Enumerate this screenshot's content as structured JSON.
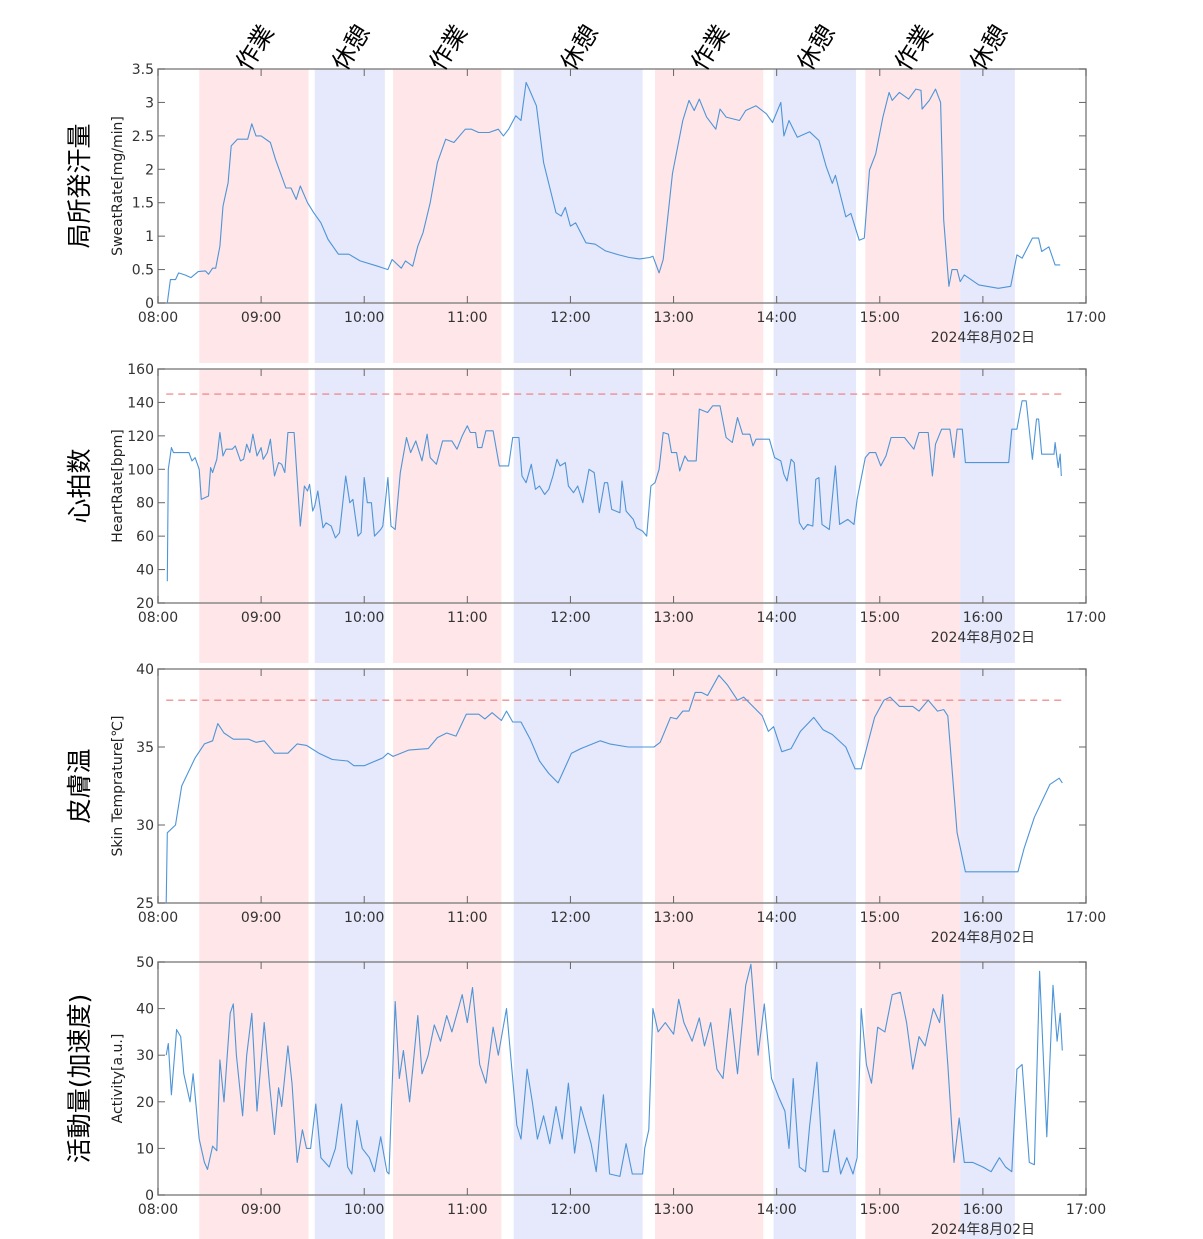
{
  "date_label": "2024年8月02日",
  "x_ticks": [
    "08:00",
    "09:00",
    "10:00",
    "11:00",
    "12:00",
    "13:00",
    "14:00",
    "15:00",
    "16:00",
    "17:00"
  ],
  "x_range_hours": [
    8,
    17
  ],
  "colors": {
    "line": "#4d95d8",
    "work": "#ffe6e8",
    "rest": "#e6e8fb",
    "threshold": "#ee7a7a",
    "axis": "#888888"
  },
  "phases": [
    {
      "label": "作業",
      "type": "work",
      "start": 8.4,
      "end": 9.46
    },
    {
      "label": "休憩",
      "type": "rest",
      "start": 9.52,
      "end": 10.2
    },
    {
      "label": "作業",
      "type": "work",
      "start": 10.28,
      "end": 11.33
    },
    {
      "label": "休憩",
      "type": "rest",
      "start": 11.45,
      "end": 12.7
    },
    {
      "label": "作業",
      "type": "work",
      "start": 12.82,
      "end": 13.87
    },
    {
      "label": "休憩",
      "type": "rest",
      "start": 13.97,
      "end": 14.77
    },
    {
      "label": "作業",
      "type": "work",
      "start": 14.86,
      "end": 15.78
    },
    {
      "label": "休憩",
      "type": "rest",
      "start": 15.78,
      "end": 16.31
    }
  ],
  "chart_data": [
    {
      "type": "line",
      "title": "局所発汗量",
      "ylabel": "SweatRate[mg/min]",
      "ylim": [
        0,
        3.5
      ],
      "yticks": [
        "0",
        "0.5",
        "1",
        "1.5",
        "2",
        "2.5",
        "3",
        "3.5"
      ],
      "ytick_values": [
        0,
        0.5,
        1,
        1.5,
        2,
        2.5,
        3,
        3.5
      ],
      "threshold": null,
      "x": [
        8.09,
        8.12,
        8.17,
        8.2,
        8.26,
        8.32,
        8.39,
        8.46,
        8.49,
        8.53,
        8.56,
        8.6,
        8.63,
        8.68,
        8.71,
        8.77,
        8.87,
        8.91,
        8.95,
        9.0,
        9.09,
        9.14,
        9.24,
        9.29,
        9.34,
        9.38,
        9.45,
        9.51,
        9.58,
        9.65,
        9.75,
        9.85,
        9.96,
        10.13,
        10.23,
        10.27,
        10.36,
        10.4,
        10.47,
        10.52,
        10.57,
        10.64,
        10.71,
        10.79,
        10.87,
        10.98,
        11.04,
        11.11,
        11.21,
        11.3,
        11.35,
        11.4,
        11.47,
        11.52,
        11.57,
        11.6,
        11.67,
        11.74,
        11.86,
        11.91,
        11.95,
        12.0,
        12.05,
        12.15,
        12.24,
        12.34,
        12.47,
        12.57,
        12.67,
        12.77,
        12.8,
        12.86,
        12.9,
        12.99,
        13.09,
        13.15,
        13.2,
        13.25,
        13.32,
        13.41,
        13.45,
        13.51,
        13.64,
        13.7,
        13.8,
        13.9,
        13.96,
        14.04,
        14.07,
        14.12,
        14.2,
        14.32,
        14.41,
        14.48,
        14.54,
        14.57,
        14.67,
        14.72,
        14.8,
        14.85,
        14.9,
        14.96,
        15.03,
        15.09,
        15.12,
        15.19,
        15.28,
        15.35,
        15.4,
        15.41,
        15.48,
        15.54,
        15.59,
        15.62,
        15.67,
        15.7,
        15.75,
        15.78,
        15.82,
        15.96,
        16.15,
        16.27,
        16.33,
        16.38,
        16.48,
        16.54,
        16.57,
        16.64,
        16.7,
        16.75
      ],
      "y": [
        0,
        0.35,
        0.35,
        0.45,
        0.42,
        0.38,
        0.47,
        0.48,
        0.43,
        0.52,
        0.52,
        0.85,
        1.45,
        1.8,
        2.35,
        2.45,
        2.45,
        2.68,
        2.5,
        2.5,
        2.4,
        2.15,
        1.72,
        1.72,
        1.55,
        1.75,
        1.5,
        1.35,
        1.2,
        0.95,
        0.73,
        0.73,
        0.63,
        0.55,
        0.5,
        0.65,
        0.52,
        0.63,
        0.55,
        0.85,
        1.05,
        1.5,
        2.1,
        2.45,
        2.4,
        2.6,
        2.6,
        2.55,
        2.55,
        2.6,
        2.5,
        2.6,
        2.8,
        2.73,
        3.3,
        3.2,
        2.95,
        2.1,
        1.35,
        1.3,
        1.43,
        1.15,
        1.2,
        0.9,
        0.88,
        0.78,
        0.72,
        0.68,
        0.66,
        0.68,
        0.7,
        0.45,
        0.65,
        1.94,
        2.73,
        3.03,
        2.88,
        3.05,
        2.78,
        2.6,
        2.9,
        2.78,
        2.73,
        2.88,
        2.95,
        2.83,
        2.7,
        3.0,
        2.5,
        2.73,
        2.48,
        2.56,
        2.43,
        2.04,
        1.79,
        1.91,
        1.29,
        1.34,
        0.94,
        0.97,
        1.99,
        2.23,
        2.78,
        3.15,
        3.03,
        3.15,
        3.05,
        3.2,
        3.18,
        2.9,
        3.03,
        3.2,
        3.0,
        1.24,
        0.25,
        0.5,
        0.5,
        0.32,
        0.42,
        0.27,
        0.22,
        0.25,
        0.72,
        0.67,
        0.97,
        0.97,
        0.77,
        0.84,
        0.57,
        0.57
      ]
    },
    {
      "type": "line",
      "title": "心拍数",
      "ylabel": "HeartRate[bpm]",
      "ylim": [
        20,
        160
      ],
      "yticks": [
        "20",
        "40",
        "60",
        "80",
        "100",
        "120",
        "140",
        "160"
      ],
      "ytick_values": [
        20,
        40,
        60,
        80,
        100,
        120,
        140,
        160
      ],
      "threshold": 145,
      "x": [
        8.09,
        8.1,
        8.13,
        8.15,
        8.3,
        8.33,
        8.36,
        8.4,
        8.42,
        8.49,
        8.51,
        8.53,
        8.57,
        8.6,
        8.63,
        8.66,
        8.72,
        8.75,
        8.8,
        8.83,
        8.86,
        8.89,
        8.92,
        8.96,
        9.0,
        9.02,
        9.06,
        9.09,
        9.13,
        9.17,
        9.2,
        9.23,
        9.26,
        9.32,
        9.38,
        9.42,
        9.45,
        9.47,
        9.5,
        9.52,
        9.55,
        9.6,
        9.63,
        9.68,
        9.72,
        9.76,
        9.82,
        9.86,
        9.89,
        9.94,
        9.97,
        10.0,
        10.03,
        10.07,
        10.1,
        10.16,
        10.18,
        10.23,
        10.26,
        10.3,
        10.35,
        10.41,
        10.45,
        10.5,
        10.56,
        10.61,
        10.64,
        10.7,
        10.76,
        10.85,
        10.9,
        10.95,
        11.0,
        11.03,
        11.08,
        11.1,
        11.14,
        11.18,
        11.25,
        11.31,
        11.4,
        11.44,
        11.5,
        11.53,
        11.57,
        11.62,
        11.66,
        11.7,
        11.75,
        11.79,
        11.83,
        11.87,
        11.9,
        11.95,
        11.98,
        12.03,
        12.07,
        12.12,
        12.18,
        12.23,
        12.28,
        12.33,
        12.36,
        12.4,
        12.48,
        12.5,
        12.54,
        12.61,
        12.64,
        12.7,
        12.74,
        12.78,
        12.82,
        12.86,
        12.9,
        12.95,
        12.98,
        13.03,
        13.06,
        13.11,
        13.14,
        13.22,
        13.25,
        13.33,
        13.38,
        13.45,
        13.51,
        13.57,
        13.62,
        13.67,
        13.74,
        13.77,
        13.8,
        13.93,
        13.98,
        14.04,
        14.07,
        14.1,
        14.14,
        14.17,
        14.22,
        14.26,
        14.3,
        14.35,
        14.38,
        14.41,
        14.44,
        14.51,
        14.57,
        14.61,
        14.69,
        14.75,
        14.78,
        14.86,
        14.9,
        14.96,
        15.01,
        15.06,
        15.11,
        15.24,
        15.33,
        15.38,
        15.47,
        15.51,
        15.54,
        15.6,
        15.68,
        15.72,
        15.75,
        15.8,
        15.83,
        16.25,
        16.28,
        16.33,
        16.38,
        16.42,
        16.48,
        16.52,
        16.54,
        16.57,
        16.69,
        16.7,
        16.73,
        16.75,
        16.76
      ],
      "y": [
        33,
        100,
        113,
        110,
        110,
        105,
        107,
        100,
        82,
        84,
        101,
        98,
        106,
        122,
        108,
        112,
        112,
        114,
        105,
        106,
        115,
        110,
        121,
        108,
        113,
        106,
        110,
        118,
        96,
        104,
        103,
        98,
        122,
        122,
        66,
        90,
        87,
        91,
        75,
        78,
        87,
        65,
        68,
        66,
        59,
        62,
        96,
        80,
        82,
        60,
        62,
        95,
        80,
        80,
        60,
        64,
        66,
        95,
        66,
        64,
        98,
        119,
        110,
        117,
        105,
        121,
        107,
        103,
        117,
        117,
        112,
        120,
        126,
        122,
        122,
        113,
        113,
        123,
        123,
        102,
        102,
        119,
        119,
        96,
        92,
        103,
        88,
        90,
        85,
        88,
        96,
        106,
        102,
        104,
        90,
        86,
        90,
        80,
        100,
        98,
        74,
        92,
        92,
        76,
        74,
        93,
        75,
        70,
        65,
        63,
        60,
        90,
        92,
        100,
        122,
        121,
        110,
        110,
        99,
        108,
        105,
        105,
        136,
        134,
        138,
        138,
        119,
        116,
        131,
        121,
        121,
        114,
        118,
        118,
        107,
        105,
        97,
        93,
        106,
        104,
        68,
        64,
        67,
        66,
        94,
        95,
        67,
        64,
        102,
        67,
        70,
        67,
        82,
        107,
        110,
        110,
        102,
        108,
        119,
        119,
        112,
        122,
        122,
        96,
        115,
        124,
        124,
        107,
        124,
        124,
        104,
        104,
        124,
        124,
        141,
        141,
        106,
        130,
        130,
        109,
        109,
        116,
        101,
        109,
        96
      ]
    },
    {
      "type": "line",
      "title": "皮膚温",
      "ylabel": "Skin Temprature[℃]",
      "ylim": [
        25,
        40
      ],
      "yticks": [
        "25",
        "30",
        "35",
        "40"
      ],
      "ytick_values": [
        25,
        30,
        35,
        40
      ],
      "threshold": 38,
      "x": [
        8.08,
        8.09,
        8.17,
        8.23,
        8.36,
        8.45,
        8.53,
        8.58,
        8.64,
        8.73,
        8.88,
        8.95,
        9.03,
        9.13,
        9.26,
        9.35,
        9.44,
        9.56,
        9.69,
        9.84,
        9.9,
        10.0,
        10.18,
        10.23,
        10.28,
        10.43,
        10.62,
        10.71,
        10.8,
        10.89,
        10.99,
        11.11,
        11.17,
        11.24,
        11.33,
        11.38,
        11.44,
        11.52,
        11.61,
        11.7,
        11.79,
        11.88,
        12.01,
        12.1,
        12.29,
        12.38,
        12.56,
        12.81,
        12.87,
        12.97,
        13.03,
        13.09,
        13.15,
        13.21,
        13.27,
        13.33,
        13.44,
        13.52,
        13.62,
        13.68,
        13.86,
        13.92,
        13.97,
        14.05,
        14.14,
        14.23,
        14.36,
        14.45,
        14.54,
        14.67,
        14.76,
        14.82,
        14.95,
        15.04,
        15.1,
        15.19,
        15.32,
        15.38,
        15.47,
        15.56,
        15.62,
        15.66,
        15.75,
        15.83,
        16.34,
        16.4,
        16.5,
        16.65,
        16.74,
        16.77
      ],
      "y": [
        25,
        29.5,
        30,
        32.5,
        34.3,
        35.2,
        35.4,
        36.5,
        35.9,
        35.5,
        35.5,
        35.3,
        35.4,
        34.6,
        34.6,
        35.2,
        35.1,
        34.6,
        34.2,
        34.1,
        33.8,
        33.8,
        34.3,
        34.6,
        34.4,
        34.8,
        34.9,
        35.6,
        35.9,
        35.7,
        37.1,
        37.1,
        36.8,
        37.2,
        36.7,
        37.3,
        36.6,
        36.6,
        35.5,
        34.1,
        33.3,
        32.7,
        34.6,
        34.9,
        35.4,
        35.2,
        35.0,
        35.0,
        35.3,
        36.9,
        36.8,
        37.3,
        37.3,
        38.5,
        38.5,
        38.3,
        39.6,
        39.0,
        38.0,
        38.2,
        37.0,
        36.0,
        36.3,
        34.7,
        34.9,
        36.0,
        36.9,
        36.1,
        35.8,
        35.0,
        33.6,
        33.6,
        36.9,
        38.0,
        38.2,
        37.6,
        37.6,
        37.3,
        38.0,
        37.3,
        37.4,
        37.0,
        29.5,
        27.0,
        27.0,
        28.5,
        30.5,
        32.6,
        33.0,
        32.7
      ]
    },
    {
      "type": "line",
      "title": "活動量(加速度)",
      "ylabel": "Activity[a.u.]",
      "ylim": [
        0,
        50
      ],
      "yticks": [
        "0",
        "10",
        "20",
        "30",
        "40",
        "50"
      ],
      "ytick_values": [
        0,
        10,
        20,
        30,
        40,
        50
      ],
      "threshold": null,
      "x": [
        8.08,
        8.1,
        8.13,
        8.18,
        8.22,
        8.25,
        8.31,
        8.34,
        8.4,
        8.45,
        8.48,
        8.53,
        8.57,
        8.6,
        8.64,
        8.7,
        8.73,
        8.76,
        8.82,
        8.86,
        8.91,
        8.96,
        9.03,
        9.08,
        9.13,
        9.17,
        9.2,
        9.26,
        9.3,
        9.35,
        9.4,
        9.44,
        9.48,
        9.53,
        9.58,
        9.66,
        9.72,
        9.78,
        9.84,
        9.88,
        9.93,
        9.98,
        10.05,
        10.1,
        10.16,
        10.22,
        10.24,
        10.3,
        10.34,
        10.38,
        10.44,
        10.52,
        10.56,
        10.62,
        10.68,
        10.74,
        10.8,
        10.85,
        10.95,
        11.0,
        11.05,
        11.12,
        11.18,
        11.25,
        11.3,
        11.38,
        11.42,
        11.48,
        11.52,
        11.58,
        11.63,
        11.68,
        11.74,
        11.8,
        11.86,
        11.92,
        11.98,
        12.04,
        12.1,
        12.2,
        12.25,
        12.32,
        12.38,
        12.48,
        12.54,
        12.6,
        12.7,
        12.72,
        12.76,
        12.8,
        12.85,
        12.92,
        13.0,
        13.05,
        13.1,
        13.18,
        13.25,
        13.3,
        13.36,
        13.42,
        13.48,
        13.55,
        13.62,
        13.7,
        13.75,
        13.82,
        13.88,
        13.95,
        14.02,
        14.08,
        14.12,
        14.16,
        14.22,
        14.28,
        14.32,
        14.39,
        14.45,
        14.5,
        14.56,
        14.62,
        14.68,
        14.74,
        14.78,
        14.82,
        14.87,
        14.92,
        14.98,
        15.05,
        15.12,
        15.2,
        15.26,
        15.32,
        15.38,
        15.44,
        15.52,
        15.58,
        15.61,
        15.66,
        15.72,
        15.77,
        15.82,
        15.9,
        16.0,
        16.08,
        16.16,
        16.22,
        16.28,
        16.33,
        16.38,
        16.45,
        16.5,
        16.55,
        16.62,
        16.68,
        16.72,
        16.75,
        16.77
      ],
      "y": [
        30,
        32.5,
        21.5,
        35.5,
        34,
        26,
        20,
        26,
        12,
        7,
        5.5,
        10.5,
        9.5,
        29,
        20,
        39,
        41,
        30,
        17,
        30,
        39,
        18,
        37,
        24,
        13,
        23,
        19,
        32,
        24,
        7,
        14,
        10,
        10,
        19.5,
        8,
        6,
        10,
        19.5,
        6,
        4.5,
        16,
        10,
        8,
        5,
        12.5,
        5,
        4.5,
        41.5,
        25,
        31,
        20,
        38.5,
        26,
        30,
        36.5,
        33,
        38.5,
        35,
        43,
        37,
        44.5,
        28,
        24,
        36,
        30,
        40,
        30,
        15,
        12,
        27,
        20,
        12,
        17,
        11,
        19,
        12,
        24,
        9,
        19,
        11,
        5,
        21.5,
        4.5,
        4,
        11,
        4.5,
        4.5,
        10,
        14,
        40,
        35,
        37,
        34.5,
        42,
        37,
        33,
        38,
        32,
        37,
        27,
        25,
        40,
        26,
        45,
        49.5,
        30,
        41,
        25,
        21,
        18,
        10,
        25,
        6,
        5,
        15,
        28.5,
        5,
        5,
        14,
        4.5,
        8,
        4.5,
        8,
        40,
        28,
        24,
        36,
        35,
        43,
        43.5,
        37,
        27,
        34,
        32,
        40,
        37,
        43,
        28,
        7,
        16.5,
        7,
        7,
        6,
        5,
        8,
        6,
        5,
        27,
        28,
        7,
        6.5,
        48,
        12.5,
        45,
        33,
        39,
        31
      ]
    }
  ]
}
